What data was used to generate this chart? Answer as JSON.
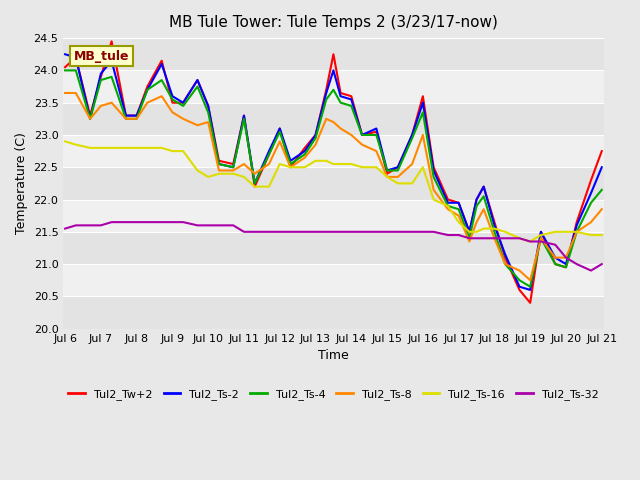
{
  "title": "MB Tule Tower: Tule Temps 2 (3/23/17-now)",
  "xlabel": "Time",
  "ylabel": "Temperature (C)",
  "xlim": [
    0,
    15
  ],
  "ylim": [
    20.0,
    24.5
  ],
  "yticks": [
    20.0,
    20.5,
    21.0,
    21.5,
    22.0,
    22.5,
    23.0,
    23.5,
    24.0,
    24.5
  ],
  "xtick_labels": [
    "Jul 6",
    "Jul 7",
    "Jul 8",
    "Jul 9",
    "Jul 10",
    "Jul 11",
    "Jul 12",
    "Jul 13",
    "Jul 14",
    "Jul 15",
    "Jul 16",
    "Jul 17",
    "Jul 18",
    "Jul 19",
    "Jul 20",
    "Jul 21"
  ],
  "legend_label": "MB_tule",
  "bg_color": "#e8e8e8",
  "plot_bg": "#f0f0f0",
  "series": {
    "Tul2_Tw+2": {
      "color": "#ff0000",
      "lw": 1.5,
      "x": [
        0,
        0.3,
        0.7,
        1.0,
        1.3,
        1.7,
        2.0,
        2.3,
        2.7,
        3.0,
        3.3,
        3.7,
        4.0,
        4.3,
        4.7,
        5.0,
        5.3,
        5.7,
        6.0,
        6.3,
        6.7,
        7.0,
        7.3,
        7.5,
        7.7,
        8.0,
        8.3,
        8.7,
        9.0,
        9.3,
        9.7,
        10.0,
        10.3,
        10.7,
        11.0,
        11.3,
        11.5,
        11.7,
        12.0,
        12.3,
        12.7,
        13.0,
        13.3,
        13.7,
        14.0,
        14.3,
        14.7,
        15.0
      ],
      "y": [
        24.05,
        24.2,
        23.3,
        23.9,
        24.45,
        23.3,
        23.3,
        23.75,
        24.15,
        23.5,
        23.5,
        23.85,
        23.45,
        22.6,
        22.55,
        23.3,
        22.2,
        22.7,
        23.1,
        22.5,
        22.8,
        23.0,
        23.7,
        24.25,
        23.65,
        23.6,
        23.0,
        23.05,
        22.4,
        22.5,
        23.0,
        23.6,
        22.5,
        22.0,
        21.95,
        21.5,
        22.0,
        22.2,
        21.65,
        21.1,
        20.6,
        20.4,
        21.5,
        21.0,
        20.95,
        21.65,
        22.3,
        22.75
      ]
    },
    "Tul2_Ts-2": {
      "color": "#0000ff",
      "lw": 1.5,
      "x": [
        0,
        0.3,
        0.7,
        1.0,
        1.3,
        1.7,
        2.0,
        2.3,
        2.7,
        3.0,
        3.3,
        3.7,
        4.0,
        4.3,
        4.7,
        5.0,
        5.3,
        5.7,
        6.0,
        6.3,
        6.7,
        7.0,
        7.3,
        7.5,
        7.7,
        8.0,
        8.3,
        8.7,
        9.0,
        9.3,
        9.7,
        10.0,
        10.3,
        10.7,
        11.0,
        11.3,
        11.5,
        11.7,
        12.0,
        12.3,
        12.7,
        13.0,
        13.3,
        13.7,
        14.0,
        14.3,
        14.7,
        15.0
      ],
      "y": [
        24.25,
        24.2,
        23.25,
        23.95,
        24.15,
        23.3,
        23.3,
        23.7,
        24.1,
        23.6,
        23.5,
        23.85,
        23.45,
        22.55,
        22.5,
        23.3,
        22.25,
        22.75,
        23.1,
        22.6,
        22.75,
        23.0,
        23.65,
        24.0,
        23.6,
        23.55,
        23.0,
        23.1,
        22.45,
        22.5,
        23.0,
        23.5,
        22.45,
        21.95,
        21.95,
        21.5,
        22.0,
        22.2,
        21.6,
        21.15,
        20.65,
        20.6,
        21.5,
        21.1,
        21.0,
        21.6,
        22.1,
        22.5
      ]
    },
    "Tul2_Ts-4": {
      "color": "#00aa00",
      "lw": 1.5,
      "x": [
        0,
        0.3,
        0.7,
        1.0,
        1.3,
        1.7,
        2.0,
        2.3,
        2.7,
        3.0,
        3.3,
        3.7,
        4.0,
        4.3,
        4.7,
        5.0,
        5.3,
        5.7,
        6.0,
        6.3,
        6.7,
        7.0,
        7.3,
        7.5,
        7.7,
        8.0,
        8.3,
        8.7,
        9.0,
        9.3,
        9.7,
        10.0,
        10.3,
        10.7,
        11.0,
        11.3,
        11.5,
        11.7,
        12.0,
        12.3,
        12.7,
        13.0,
        13.3,
        13.7,
        14.0,
        14.3,
        14.7,
        15.0
      ],
      "y": [
        24.0,
        24.0,
        23.25,
        23.85,
        23.9,
        23.25,
        23.25,
        23.7,
        23.85,
        23.55,
        23.45,
        23.75,
        23.35,
        22.55,
        22.5,
        23.25,
        22.25,
        22.7,
        23.05,
        22.55,
        22.7,
        22.95,
        23.55,
        23.7,
        23.5,
        23.45,
        23.0,
        23.0,
        22.45,
        22.45,
        22.95,
        23.35,
        22.35,
        21.9,
        21.85,
        21.4,
        21.9,
        22.05,
        21.5,
        21.0,
        20.75,
        20.65,
        21.4,
        21.0,
        20.95,
        21.5,
        21.95,
        22.15
      ]
    },
    "Tul2_Ts-8": {
      "color": "#ff8800",
      "lw": 1.5,
      "x": [
        0,
        0.3,
        0.7,
        1.0,
        1.3,
        1.7,
        2.0,
        2.3,
        2.7,
        3.0,
        3.3,
        3.7,
        4.0,
        4.3,
        4.7,
        5.0,
        5.3,
        5.7,
        6.0,
        6.3,
        6.7,
        7.0,
        7.3,
        7.5,
        7.7,
        8.0,
        8.3,
        8.7,
        9.0,
        9.3,
        9.7,
        10.0,
        10.3,
        10.7,
        11.0,
        11.3,
        11.5,
        11.7,
        12.0,
        12.3,
        12.7,
        13.0,
        13.3,
        13.7,
        14.0,
        14.3,
        14.7,
        15.0
      ],
      "y": [
        23.65,
        23.65,
        23.25,
        23.45,
        23.5,
        23.25,
        23.25,
        23.5,
        23.6,
        23.35,
        23.25,
        23.15,
        23.2,
        22.45,
        22.45,
        22.55,
        22.4,
        22.55,
        22.9,
        22.5,
        22.65,
        22.85,
        23.25,
        23.2,
        23.1,
        23.0,
        22.85,
        22.75,
        22.35,
        22.35,
        22.55,
        23.0,
        22.15,
        21.85,
        21.75,
        21.35,
        21.65,
        21.85,
        21.4,
        21.0,
        20.9,
        20.75,
        21.4,
        21.1,
        21.1,
        21.5,
        21.65,
        21.85
      ]
    },
    "Tul2_Ts-16": {
      "color": "#dddd00",
      "lw": 1.5,
      "x": [
        0,
        0.3,
        0.7,
        1.0,
        1.3,
        1.7,
        2.0,
        2.3,
        2.7,
        3.0,
        3.3,
        3.7,
        4.0,
        4.3,
        4.7,
        5.0,
        5.3,
        5.7,
        6.0,
        6.3,
        6.7,
        7.0,
        7.3,
        7.5,
        7.7,
        8.0,
        8.3,
        8.7,
        9.0,
        9.3,
        9.7,
        10.0,
        10.3,
        10.7,
        11.0,
        11.3,
        11.5,
        11.7,
        12.0,
        12.3,
        12.7,
        13.0,
        13.3,
        13.7,
        14.0,
        14.3,
        14.7,
        15.0
      ],
      "y": [
        22.9,
        22.85,
        22.8,
        22.8,
        22.8,
        22.8,
        22.8,
        22.8,
        22.8,
        22.75,
        22.75,
        22.45,
        22.35,
        22.4,
        22.4,
        22.35,
        22.2,
        22.2,
        22.55,
        22.5,
        22.5,
        22.6,
        22.6,
        22.55,
        22.55,
        22.55,
        22.5,
        22.5,
        22.35,
        22.25,
        22.25,
        22.5,
        22.0,
        21.9,
        21.65,
        21.5,
        21.5,
        21.55,
        21.55,
        21.5,
        21.4,
        21.35,
        21.45,
        21.5,
        21.5,
        21.5,
        21.45,
        21.45
      ]
    },
    "Tul2_Ts-32": {
      "color": "#aa00aa",
      "lw": 1.5,
      "x": [
        0,
        0.3,
        0.7,
        1.0,
        1.3,
        1.7,
        2.0,
        2.3,
        2.7,
        3.0,
        3.3,
        3.7,
        4.0,
        4.3,
        4.7,
        5.0,
        5.3,
        5.7,
        6.0,
        6.3,
        6.7,
        7.0,
        7.3,
        7.5,
        7.7,
        8.0,
        8.3,
        8.7,
        9.0,
        9.3,
        9.7,
        10.0,
        10.3,
        10.7,
        11.0,
        11.3,
        11.5,
        11.7,
        12.0,
        12.3,
        12.7,
        13.0,
        13.3,
        13.7,
        14.0,
        14.3,
        14.7,
        15.0
      ],
      "y": [
        21.55,
        21.6,
        21.6,
        21.6,
        21.65,
        21.65,
        21.65,
        21.65,
        21.65,
        21.65,
        21.65,
        21.6,
        21.6,
        21.6,
        21.6,
        21.5,
        21.5,
        21.5,
        21.5,
        21.5,
        21.5,
        21.5,
        21.5,
        21.5,
        21.5,
        21.5,
        21.5,
        21.5,
        21.5,
        21.5,
        21.5,
        21.5,
        21.5,
        21.45,
        21.45,
        21.4,
        21.4,
        21.4,
        21.4,
        21.4,
        21.4,
        21.35,
        21.35,
        21.3,
        21.1,
        21.0,
        20.9,
        21.0
      ]
    }
  }
}
